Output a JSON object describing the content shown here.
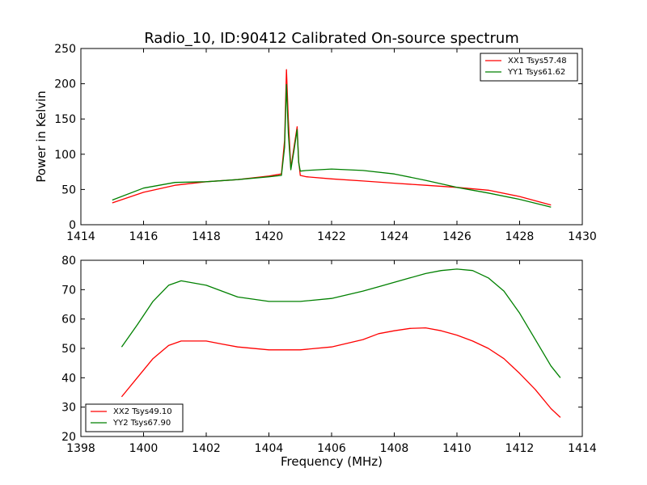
{
  "figure": {
    "title": "Radio_10, ID:90412 Calibrated On-source spectrum"
  },
  "chart_data": [
    {
      "type": "line",
      "title": "Radio_10, ID:90412 Calibrated On-source spectrum",
      "xlabel": "",
      "ylabel": "Power in Kelvin",
      "xlim": [
        1414,
        1430
      ],
      "ylim": [
        0,
        250
      ],
      "xticks": [
        1414,
        1416,
        1418,
        1420,
        1422,
        1424,
        1426,
        1428,
        1430
      ],
      "yticks": [
        0,
        50,
        100,
        150,
        200,
        250
      ],
      "legend_position": "top-right",
      "series": [
        {
          "name": "XX1 Tsys57.48",
          "color": "#ff0000",
          "x": [
            1415,
            1416,
            1417,
            1418,
            1419,
            1420,
            1420.4,
            1420.5,
            1420.56,
            1420.62,
            1420.7,
            1420.8,
            1420.9,
            1420.95,
            1421.0,
            1421.2,
            1422,
            1423,
            1424,
            1425,
            1426,
            1427,
            1428,
            1429
          ],
          "y": [
            31,
            46,
            56,
            61,
            64,
            69,
            72,
            120,
            220,
            150,
            80,
            110,
            139,
            90,
            70,
            68,
            65,
            62,
            59,
            56,
            53,
            49,
            40,
            28
          ]
        },
        {
          "name": "YY1 Tsys61.62",
          "color": "#008000",
          "x": [
            1415,
            1416,
            1417,
            1418,
            1419,
            1420,
            1420.4,
            1420.5,
            1420.56,
            1420.62,
            1420.7,
            1420.8,
            1420.9,
            1420.95,
            1421.0,
            1421.2,
            1422,
            1423,
            1424,
            1425,
            1426,
            1427,
            1428,
            1429
          ],
          "y": [
            35,
            52,
            60,
            61,
            64,
            68,
            70,
            110,
            199,
            130,
            78,
            105,
            135,
            88,
            76,
            77,
            79,
            77,
            72,
            63,
            53,
            45,
            36,
            25
          ]
        }
      ]
    },
    {
      "type": "line",
      "title": "",
      "xlabel": "Frequency (MHz)",
      "ylabel": "",
      "xlim": [
        1398,
        1414
      ],
      "ylim": [
        20,
        80
      ],
      "xticks": [
        1398,
        1400,
        1402,
        1404,
        1406,
        1408,
        1410,
        1412,
        1414
      ],
      "yticks": [
        20,
        30,
        40,
        50,
        60,
        70,
        80
      ],
      "legend_position": "bottom-left",
      "series": [
        {
          "name": "XX2 Tsys49.10",
          "color": "#ff0000",
          "x": [
            1399.3,
            1399.8,
            1400.3,
            1400.8,
            1401.2,
            1402,
            1402.5,
            1403,
            1404,
            1405,
            1406,
            1407,
            1407.5,
            1408,
            1408.5,
            1409,
            1409.5,
            1410,
            1410.5,
            1411,
            1411.5,
            1412,
            1412.5,
            1413,
            1413.3
          ],
          "y": [
            33.5,
            40,
            46.5,
            51,
            52.5,
            52.5,
            51.5,
            50.5,
            49.5,
            49.5,
            50.5,
            53,
            55,
            56,
            56.8,
            57,
            56,
            54.5,
            52.5,
            50,
            46.5,
            41.5,
            36,
            29.5,
            26.5
          ]
        },
        {
          "name": "YY2 Tsys67.90",
          "color": "#008000",
          "x": [
            1399.3,
            1399.8,
            1400.3,
            1400.8,
            1401.2,
            1402,
            1402.5,
            1403,
            1404,
            1405,
            1406,
            1407,
            1407.5,
            1408,
            1408.5,
            1409,
            1409.5,
            1410,
            1410.5,
            1411,
            1411.5,
            1412,
            1412.5,
            1413,
            1413.3
          ],
          "y": [
            50.5,
            58,
            66,
            71.5,
            73,
            71.5,
            69.5,
            67.5,
            66,
            66,
            67,
            69.5,
            71,
            72.5,
            74,
            75.5,
            76.5,
            77,
            76.5,
            74,
            69.5,
            62,
            53,
            44,
            40
          ]
        }
      ]
    }
  ]
}
